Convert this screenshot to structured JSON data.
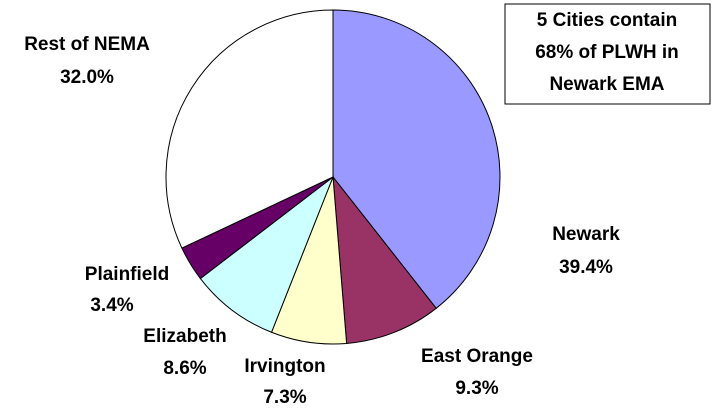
{
  "chart_data": {
    "type": "pie",
    "categories": [
      "Newark",
      "East Orange",
      "Irvington",
      "Elizabeth",
      "Plainfield",
      "Rest of NEMA"
    ],
    "values": [
      39.4,
      9.3,
      7.3,
      8.6,
      3.4,
      32.0
    ],
    "value_labels": [
      "39.4%",
      "9.3%",
      "7.3%",
      "8.6%",
      "3.4%",
      "32.0%"
    ],
    "colors": [
      "#9999ff",
      "#993366",
      "#ffffcc",
      "#ccffff",
      "#660066",
      "#ffffff"
    ],
    "annotation": [
      "5 Cities contain",
      "68% of PLWH in",
      "Newark EMA"
    ]
  }
}
